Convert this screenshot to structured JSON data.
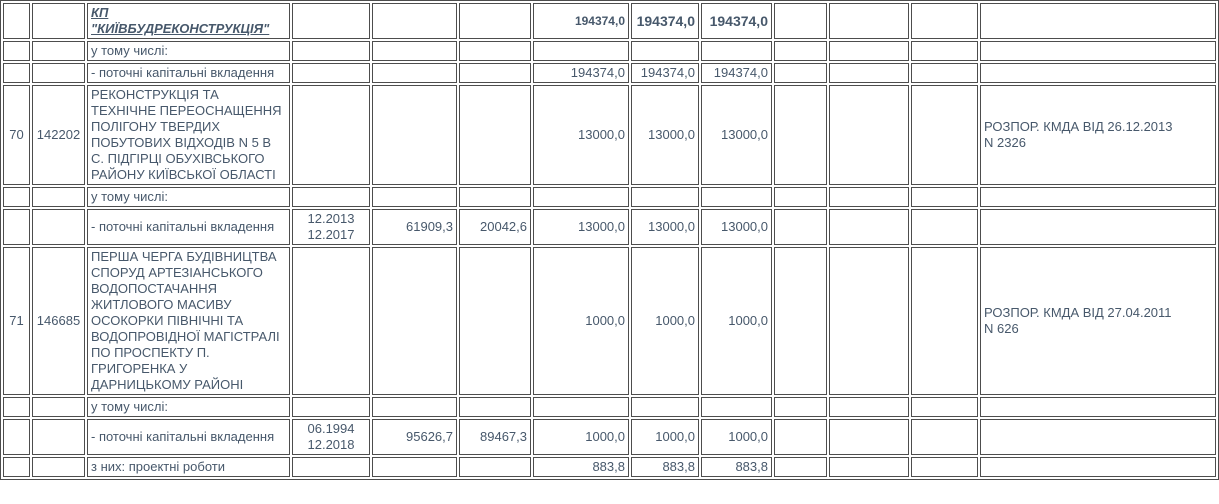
{
  "page": {
    "background": "#FFFFFF",
    "text_color": "#47586B",
    "border_color": "#4D4D4D",
    "language": "uk",
    "description": "Fragment of a Ukrainian capital-construction budget table (rows 70-71)"
  },
  "table": {
    "column_count": 13,
    "rows": [
      {
        "type": "group-header",
        "cells": [
          "",
          "",
          "КП \"КИЇВБУДРЕКОНСТРУКЦІЯ\"",
          "",
          "",
          "",
          "194374,0",
          "194374,0",
          "194374,0",
          "",
          "",
          "",
          ""
        ]
      },
      {
        "type": "sub-label",
        "cells": [
          "",
          "",
          "у тому числі:",
          "",
          "",
          "",
          "",
          "",
          "",
          "",
          "",
          "",
          ""
        ]
      },
      {
        "type": "data",
        "cells": [
          "",
          "",
          "- поточні капітальні вкладення",
          "",
          "",
          "",
          "194374,0",
          "194374,0",
          "194374,0",
          "",
          "",
          "",
          ""
        ]
      },
      {
        "type": "project",
        "cells": [
          "70",
          "142202",
          "РЕКОНСТРУКЦІЯ ТА ТЕХНІЧНЕ ПЕРЕОСНАЩЕННЯ ПОЛІГОНУ ТВЕРДИХ ПОБУТОВИХ ВІДХОДІВ N 5 В С. ПІДГІРЦІ ОБУХІВСЬКОГО РАЙОНУ КИЇВСЬКОЇ ОБЛАСТІ",
          "",
          "",
          "",
          "13000,0",
          "13000,0",
          "13000,0",
          "",
          "",
          "",
          "РОЗПОР. КМДА ВІД 26.12.2013\nN 2326"
        ]
      },
      {
        "type": "sub-label",
        "cells": [
          "",
          "",
          "у тому числі:",
          "",
          "",
          "",
          "",
          "",
          "",
          "",
          "",
          "",
          ""
        ]
      },
      {
        "type": "data",
        "cells": [
          "",
          "",
          "- поточні капітальні вкладення",
          "12.2013\n12.2017",
          "61909,3",
          "20042,6",
          "13000,0",
          "13000,0",
          "13000,0",
          "",
          "",
          "",
          ""
        ]
      },
      {
        "type": "project",
        "cells": [
          "71",
          "146685",
          "ПЕРША ЧЕРГА БУДІВНИЦТВА СПОРУД АРТЕЗІАНСЬКОГО ВОДОПОСТАЧАННЯ ЖИТЛОВОГО МАСИВУ ОСОКОРКИ ПІВНІЧНІ ТА ВОДОПРОВІДНОЇ МАГІСТРАЛІ ПО ПРОСПЕКТУ П. ГРИГОРЕНКА У ДАРНИЦЬКОМУ РАЙОНІ",
          "",
          "",
          "",
          "1000,0",
          "1000,0",
          "1000,0",
          "",
          "",
          "",
          "РОЗПОР. КМДА ВІД 27.04.2011\nN 626"
        ]
      },
      {
        "type": "sub-label",
        "cells": [
          "",
          "",
          "у тому числі:",
          "",
          "",
          "",
          "",
          "",
          "",
          "",
          "",
          "",
          ""
        ]
      },
      {
        "type": "data",
        "cells": [
          "",
          "",
          "- поточні капітальні вкладення",
          "06.1994\n12.2018",
          "95626,7",
          "89467,3",
          "1000,0",
          "1000,0",
          "1000,0",
          "",
          "",
          "",
          ""
        ]
      },
      {
        "type": "data",
        "cells": [
          "",
          "",
          "з них: проектні роботи",
          "",
          "",
          "",
          "883,8",
          "883,8",
          "883,8",
          "",
          "",
          "",
          ""
        ]
      }
    ]
  }
}
